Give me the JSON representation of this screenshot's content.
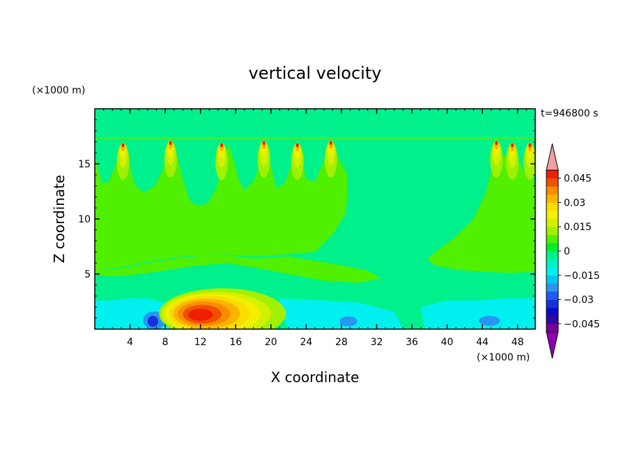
{
  "chart_data": {
    "type": "heatmap",
    "title": "vertical velocity",
    "time_label": "t=946800 s",
    "xlabel": "X coordinate",
    "ylabel": "Z coordinate",
    "x_unit": "(×1000 m)",
    "y_unit": "(×1000 m)",
    "xlim": [
      0,
      50
    ],
    "ylim": [
      0,
      20
    ],
    "x_ticks": [
      4,
      8,
      12,
      16,
      20,
      24,
      28,
      32,
      36,
      40,
      44,
      48
    ],
    "y_ticks": [
      5,
      10,
      15
    ],
    "colorbar": {
      "levels": [
        -0.05,
        -0.045,
        -0.04,
        -0.035,
        -0.03,
        -0.025,
        -0.02,
        -0.015,
        -0.01,
        -0.005,
        0,
        0.005,
        0.01,
        0.015,
        0.02,
        0.025,
        0.03,
        0.035,
        0.04,
        0.045,
        0.05
      ],
      "colors": [
        "#780096",
        "#2d0aa0",
        "#0a0ac8",
        "#1432dc",
        "#1e5af0",
        "#2896f0",
        "#00c8f0",
        "#00f0f0",
        "#00f0c8",
        "#00f08c",
        "#00f028",
        "#50f000",
        "#a0f000",
        "#d2f000",
        "#f0f000",
        "#fadc00",
        "#fab400",
        "#fa8c00",
        "#f05000",
        "#f01e00"
      ],
      "over_color": "#f0a0a0",
      "under_color": "#8c00b4",
      "labels": [
        {
          "value": 0.045,
          "text": "0.045"
        },
        {
          "value": 0.03,
          "text": "0.03"
        },
        {
          "value": 0.015,
          "text": "0.015"
        },
        {
          "value": 0,
          "text": "0"
        },
        {
          "value": -0.015,
          "text": "−0.015"
        },
        {
          "value": -0.03,
          "text": "−0.03"
        },
        {
          "value": -0.045,
          "text": "−0.045"
        }
      ]
    },
    "background_color": "#00f08c",
    "features": {
      "green_upper": [
        [
          0,
          5.4
        ],
        [
          3,
          5.5
        ],
        [
          6,
          6
        ],
        [
          10,
          6.5
        ],
        [
          14,
          6.8
        ],
        [
          18,
          6.4
        ],
        [
          22,
          6.6
        ],
        [
          25,
          6.2
        ],
        [
          28,
          5.8
        ],
        [
          31,
          5.3
        ],
        [
          32.5,
          4.6
        ],
        [
          30,
          4.2
        ],
        [
          26,
          4.4
        ],
        [
          22,
          5
        ],
        [
          18,
          5.6
        ],
        [
          15,
          6
        ],
        [
          11,
          5.7
        ],
        [
          7,
          5.2
        ],
        [
          4,
          4.9
        ],
        [
          2,
          4.8
        ],
        [
          0,
          4.9
        ],
        [
          0,
          5.4
        ]
      ],
      "green_upper_top": [
        [
          0,
          5.4
        ],
        [
          3,
          5.6
        ],
        [
          6,
          6.1
        ],
        [
          10,
          6.6
        ],
        [
          14,
          6.8
        ],
        [
          18,
          6.6
        ],
        [
          22,
          6.8
        ],
        [
          25,
          7
        ],
        [
          27,
          8.6
        ],
        [
          28.5,
          10.5
        ],
        [
          28.7,
          12.5
        ],
        [
          28.6,
          14.2
        ],
        [
          27.6,
          15.6
        ],
        [
          26.8,
          16.8
        ],
        [
          26,
          15.2
        ],
        [
          25,
          13.4
        ],
        [
          24,
          13.6
        ],
        [
          23.6,
          15
        ],
        [
          23,
          16.9
        ],
        [
          22.4,
          15
        ],
        [
          21.5,
          13.2
        ],
        [
          20.6,
          12.8
        ],
        [
          20,
          14.8
        ],
        [
          19.4,
          16.8
        ],
        [
          18.8,
          15
        ],
        [
          18,
          13.4
        ],
        [
          17,
          12.6
        ],
        [
          16.4,
          13.4
        ],
        [
          15.8,
          15.2
        ],
        [
          15.2,
          16.8
        ],
        [
          14.6,
          15
        ],
        [
          13.8,
          12.8
        ],
        [
          12.8,
          11.4
        ],
        [
          11.8,
          11.2
        ],
        [
          10.8,
          11.6
        ],
        [
          10,
          13.6
        ],
        [
          9.3,
          15.8
        ],
        [
          8.6,
          16.9
        ],
        [
          7.8,
          14.6
        ],
        [
          6.8,
          13
        ],
        [
          5.6,
          12.4
        ],
        [
          4.6,
          13
        ],
        [
          3.8,
          15.4
        ],
        [
          3.2,
          16.8
        ],
        [
          2.4,
          15
        ],
        [
          1.6,
          13.4
        ],
        [
          0.8,
          13.2
        ],
        [
          0,
          15.8
        ],
        [
          0,
          5.4
        ]
      ],
      "green_right": [
        [
          37.8,
          6.4
        ],
        [
          39,
          7.2
        ],
        [
          41,
          8.4
        ],
        [
          43,
          10
        ],
        [
          44.4,
          12.4
        ],
        [
          45.2,
          15
        ],
        [
          45.6,
          16.8
        ],
        [
          46.2,
          15.6
        ],
        [
          46.8,
          15.8
        ],
        [
          47.4,
          16.9
        ],
        [
          48.1,
          15.4
        ],
        [
          48.6,
          14.4
        ],
        [
          50,
          13.4
        ],
        [
          50,
          5.2
        ],
        [
          47,
          5.1
        ],
        [
          44,
          5.2
        ],
        [
          41,
          5.4
        ],
        [
          38.5,
          5.8
        ],
        [
          37.8,
          6.4
        ]
      ],
      "cyan_bottom": [
        [
          0,
          2.6
        ],
        [
          2,
          2.6
        ],
        [
          4,
          2.8
        ],
        [
          6,
          2.8
        ],
        [
          8,
          2.4
        ],
        [
          9,
          1.2
        ],
        [
          9.5,
          0
        ],
        [
          0,
          0
        ],
        [
          0,
          2.6
        ]
      ],
      "cyan_mid": [
        [
          21,
          2.8
        ],
        [
          26,
          2.6
        ],
        [
          30,
          2.4
        ],
        [
          34,
          1.6
        ],
        [
          35,
          0
        ],
        [
          22,
          0
        ],
        [
          21,
          1.4
        ],
        [
          21,
          2.8
        ]
      ],
      "cyan_right": [
        [
          37,
          2
        ],
        [
          40,
          2.6
        ],
        [
          44,
          2.6
        ],
        [
          47,
          2.8
        ],
        [
          50,
          2.8
        ],
        [
          50,
          0
        ],
        [
          37.5,
          0
        ],
        [
          37,
          2
        ]
      ],
      "blue_spots": [
        {
          "x": 6.8,
          "z": 0.8,
          "rx": 1.3,
          "rz": 0.8,
          "color": "#2896f0"
        },
        {
          "x": 6.6,
          "z": 0.7,
          "rx": 0.6,
          "rz": 0.5,
          "color": "#1432dc"
        },
        {
          "x": 28.8,
          "z": 0.7,
          "rx": 1.0,
          "rz": 0.45,
          "color": "#2896f0"
        },
        {
          "x": 44.8,
          "z": 0.75,
          "rx": 1.2,
          "rz": 0.45,
          "color": "#2896f0"
        }
      ],
      "warm_blob": [
        {
          "x": 14.5,
          "z": 1.4,
          "rx": 7.2,
          "rz": 2.3,
          "color": "#a0f000"
        },
        {
          "x": 13.8,
          "z": 1.4,
          "rx": 6.2,
          "rz": 2.0,
          "color": "#d2f000"
        },
        {
          "x": 13.4,
          "z": 1.4,
          "rx": 5.4,
          "rz": 1.8,
          "color": "#f0f000"
        },
        {
          "x": 13.0,
          "z": 1.4,
          "rx": 4.6,
          "rz": 1.6,
          "color": "#fadc00"
        },
        {
          "x": 12.7,
          "z": 1.4,
          "rx": 3.8,
          "rz": 1.35,
          "color": "#fab400"
        },
        {
          "x": 12.4,
          "z": 1.4,
          "rx": 3.0,
          "rz": 1.1,
          "color": "#fa8c00"
        },
        {
          "x": 12.2,
          "z": 1.35,
          "rx": 2.2,
          "rz": 0.85,
          "color": "#f05000"
        },
        {
          "x": 12.0,
          "z": 1.3,
          "rx": 1.4,
          "rz": 0.55,
          "color": "#f01e00"
        }
      ],
      "plume_tips": [
        {
          "x": 3.2,
          "z": 16.2
        },
        {
          "x": 8.6,
          "z": 16.4
        },
        {
          "x": 14.4,
          "z": 16.2
        },
        {
          "x": 19.2,
          "z": 16.4
        },
        {
          "x": 23.0,
          "z": 16.2
        },
        {
          "x": 26.8,
          "z": 16.4
        },
        {
          "x": 45.6,
          "z": 16.4
        },
        {
          "x": 47.4,
          "z": 16.2
        },
        {
          "x": 49.4,
          "z": 16.2
        }
      ]
    }
  }
}
